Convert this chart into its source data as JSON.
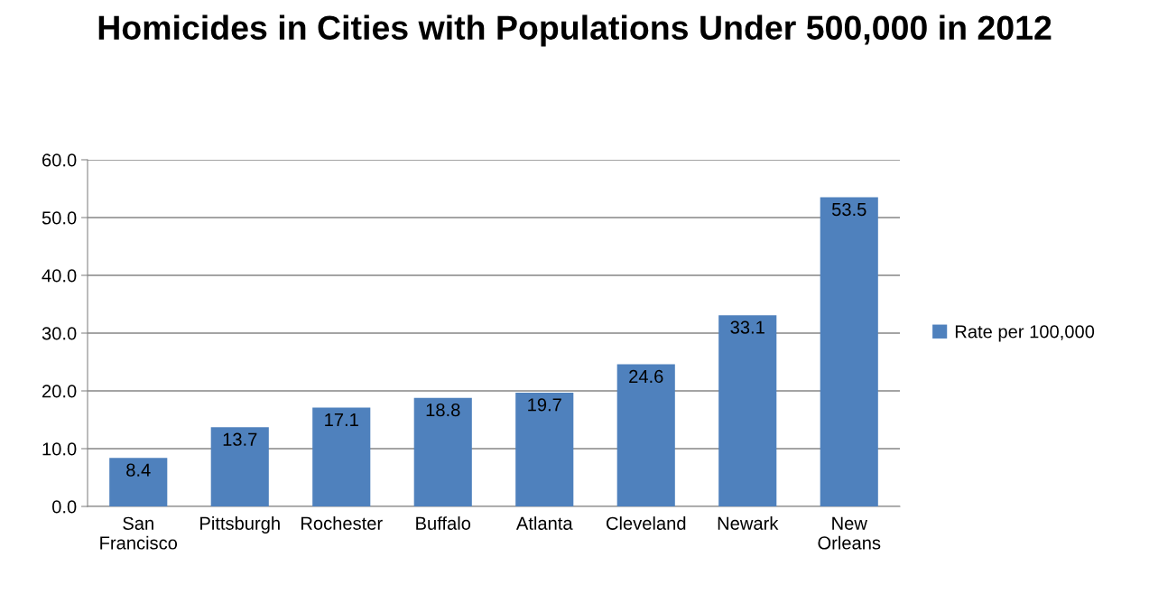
{
  "chart_data": {
    "type": "bar",
    "title": "Homicides in Cities with Populations Under 500,000 in 2012",
    "categories": [
      "San Francisco",
      "Pittsburgh",
      "Rochester",
      "Buffalo",
      "Atlanta",
      "Cleveland",
      "Newark",
      "New Orleans"
    ],
    "series": [
      {
        "name": "Rate per 100,000",
        "color": "#4f81bd",
        "values": [
          8.4,
          13.7,
          17.1,
          18.8,
          19.7,
          24.6,
          33.1,
          53.5
        ]
      }
    ],
    "ylim": [
      0,
      60
    ],
    "yticks": [
      {
        "value": 0,
        "label": "0.0"
      },
      {
        "value": 10,
        "label": "10.0"
      },
      {
        "value": 20,
        "label": "20.0"
      },
      {
        "value": 30,
        "label": "30.0"
      },
      {
        "value": 40,
        "label": "40.0"
      },
      {
        "value": 50,
        "label": "50.0"
      },
      {
        "value": 60,
        "label": "60.0"
      }
    ],
    "grid": "y",
    "legend": "right",
    "data_labels": true
  }
}
